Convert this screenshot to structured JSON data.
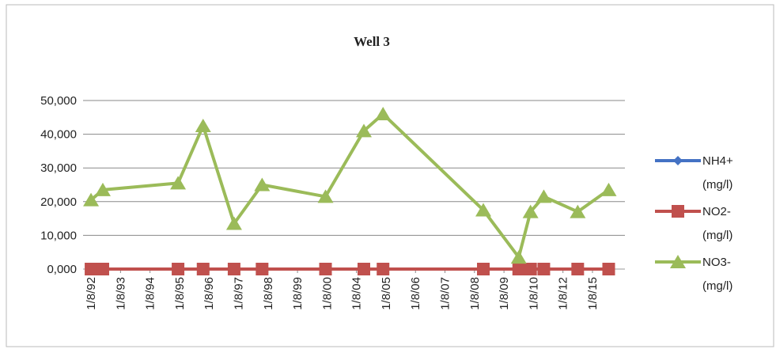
{
  "chart_data": {
    "type": "line",
    "title": "Well 3",
    "xlim": [
      -0.27,
      18.1
    ],
    "xticks": [
      {
        "value": 0,
        "label": "1/8/92"
      },
      {
        "value": 1,
        "label": "1/8/93"
      },
      {
        "value": 2,
        "label": "1/8/94"
      },
      {
        "value": 3,
        "label": "1/8/95"
      },
      {
        "value": 4,
        "label": "1/8/96"
      },
      {
        "value": 5,
        "label": "1/8/97"
      },
      {
        "value": 6,
        "label": "1/8/98"
      },
      {
        "value": 7,
        "label": "1/8/99"
      },
      {
        "value": 8,
        "label": "1/8/00"
      },
      {
        "value": 9,
        "label": "1/8/04"
      },
      {
        "value": 10,
        "label": "1/8/05"
      },
      {
        "value": 11,
        "label": "1/8/06"
      },
      {
        "value": 12,
        "label": "1/8/07"
      },
      {
        "value": 13,
        "label": "1/8/08"
      },
      {
        "value": 14,
        "label": "1/8/09"
      },
      {
        "value": 15,
        "label": "1/8/10"
      },
      {
        "value": 16,
        "label": "1/8/12"
      },
      {
        "value": 17,
        "label": "1/8/15"
      }
    ],
    "x": [
      0,
      0.4,
      2.95,
      3.8,
      4.85,
      5.8,
      7.95,
      9.25,
      9.9,
      13.3,
      14.5,
      14.9,
      15.35,
      16.5,
      17.55
    ],
    "ylim": [
      0,
      50
    ],
    "yticks": [
      {
        "value": 0,
        "label": "0,000"
      },
      {
        "value": 10,
        "label": "10,000"
      },
      {
        "value": 20,
        "label": "20,000"
      },
      {
        "value": 30,
        "label": "30,000"
      },
      {
        "value": 40,
        "label": "40,000"
      },
      {
        "value": 50,
        "label": "50,000"
      }
    ],
    "grid": true,
    "legend": "right",
    "series": [
      {
        "name": "NH4+ (mg/l)",
        "color": "#4472c4",
        "marker": "diamond",
        "values": [
          0,
          0,
          0,
          0,
          0,
          0,
          0,
          0,
          0,
          0,
          0,
          0,
          0,
          0,
          0
        ]
      },
      {
        "name": "NO2- (mg/l)",
        "color": "#c0504d",
        "marker": "square",
        "values": [
          0,
          0,
          0,
          0,
          0,
          0,
          0,
          0,
          0,
          0,
          0,
          0,
          0,
          0,
          0
        ]
      },
      {
        "name": "NO3- (mg/l)",
        "color": "#9bbb59",
        "marker": "triangle",
        "values": [
          20.5,
          23.5,
          25.5,
          42.5,
          13.5,
          25,
          21.5,
          41,
          46,
          17.5,
          3.5,
          17,
          21.5,
          17,
          23.5
        ]
      }
    ]
  }
}
